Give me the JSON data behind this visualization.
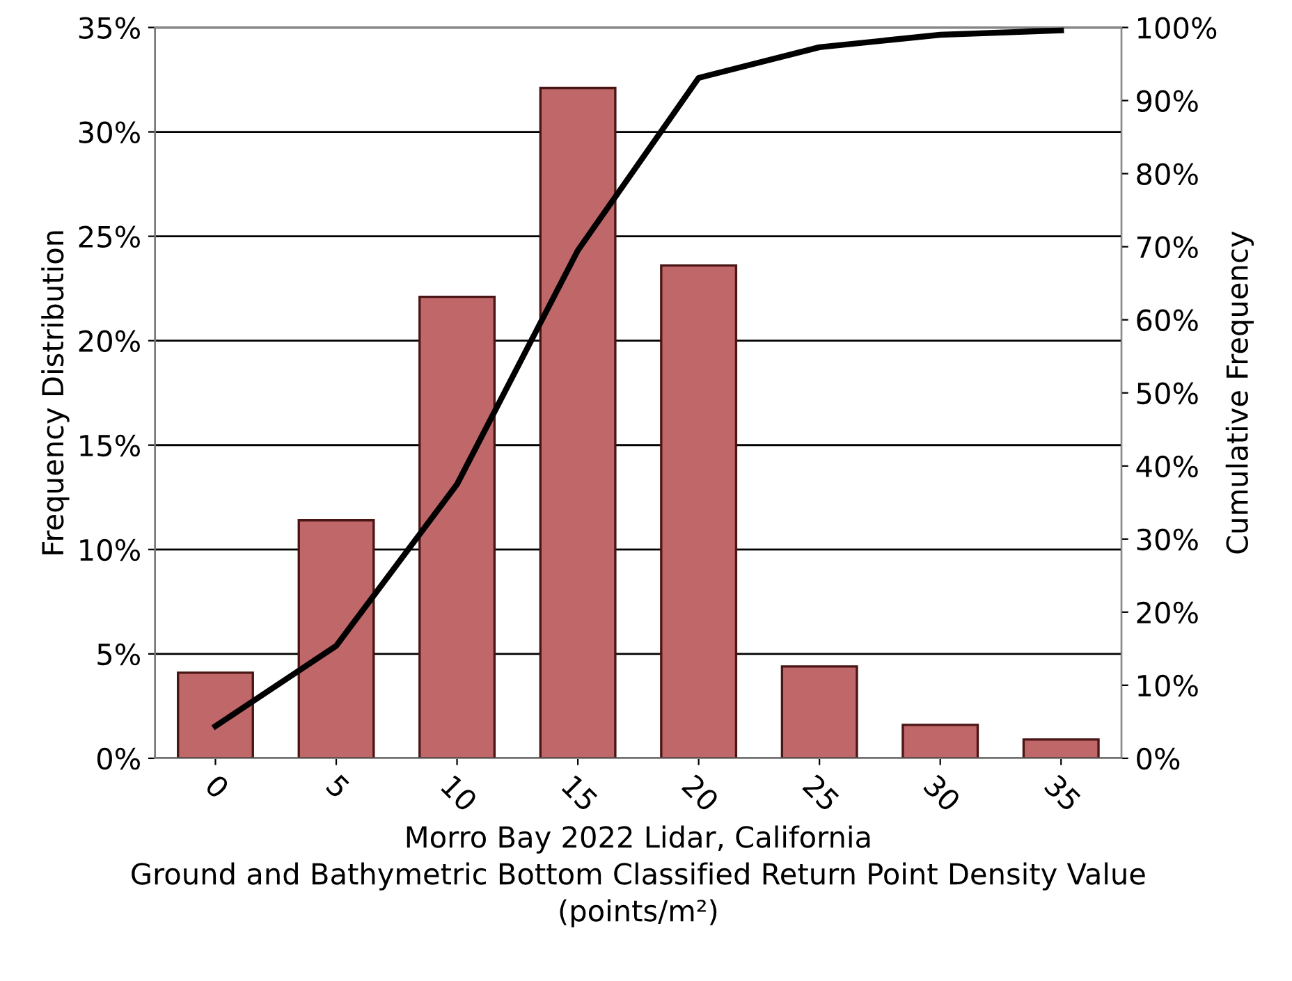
{
  "chart_data": {
    "type": "bar",
    "xlabel": "Morro Bay 2022 Lidar, California\nGround and Bathymetric Bottom Classified Return Point Density Value\n(points/m²)",
    "ylabel": "Frequency Distribution",
    "y2label": "Cumulative Frequency",
    "categories": [
      "0",
      "5",
      "10",
      "15",
      "20",
      "25",
      "30",
      "35"
    ],
    "series": [
      {
        "color": "#c0676a",
        "values": [
          4.1,
          11.4,
          22.1,
          32.1,
          23.6,
          4.4,
          1.6,
          0.9
        ]
      },
      {
        "type": "line",
        "axis": "y2",
        "color": "#000000",
        "values": [
          4.4,
          15.4,
          37.5,
          69.5,
          93.1,
          97.3,
          99.0,
          99.6
        ]
      }
    ],
    "ylim": [
      0,
      35
    ],
    "yticks": [
      {
        "value": 0,
        "label": "0%"
      },
      {
        "value": 5,
        "label": "5%"
      },
      {
        "value": 10,
        "label": "10%"
      },
      {
        "value": 15,
        "label": "15%"
      },
      {
        "value": 20,
        "label": "20%"
      },
      {
        "value": 25,
        "label": "25%"
      },
      {
        "value": 30,
        "label": "30%"
      },
      {
        "value": 35,
        "label": "35%"
      }
    ],
    "y2lim": [
      0,
      100
    ],
    "y2ticks": [
      {
        "value": 0,
        "label": "0%"
      },
      {
        "value": 10,
        "label": "10%"
      },
      {
        "value": 20,
        "label": "20%"
      },
      {
        "value": 30,
        "label": "30%"
      },
      {
        "value": 40,
        "label": "40%"
      },
      {
        "value": 50,
        "label": "50%"
      },
      {
        "value": 60,
        "label": "60%"
      },
      {
        "value": 70,
        "label": "70%"
      },
      {
        "value": 80,
        "label": "80%"
      },
      {
        "value": 90,
        "label": "90%"
      },
      {
        "value": 100,
        "label": "100%"
      }
    ],
    "grid": "y",
    "marker": "none",
    "line_style": "solid"
  }
}
